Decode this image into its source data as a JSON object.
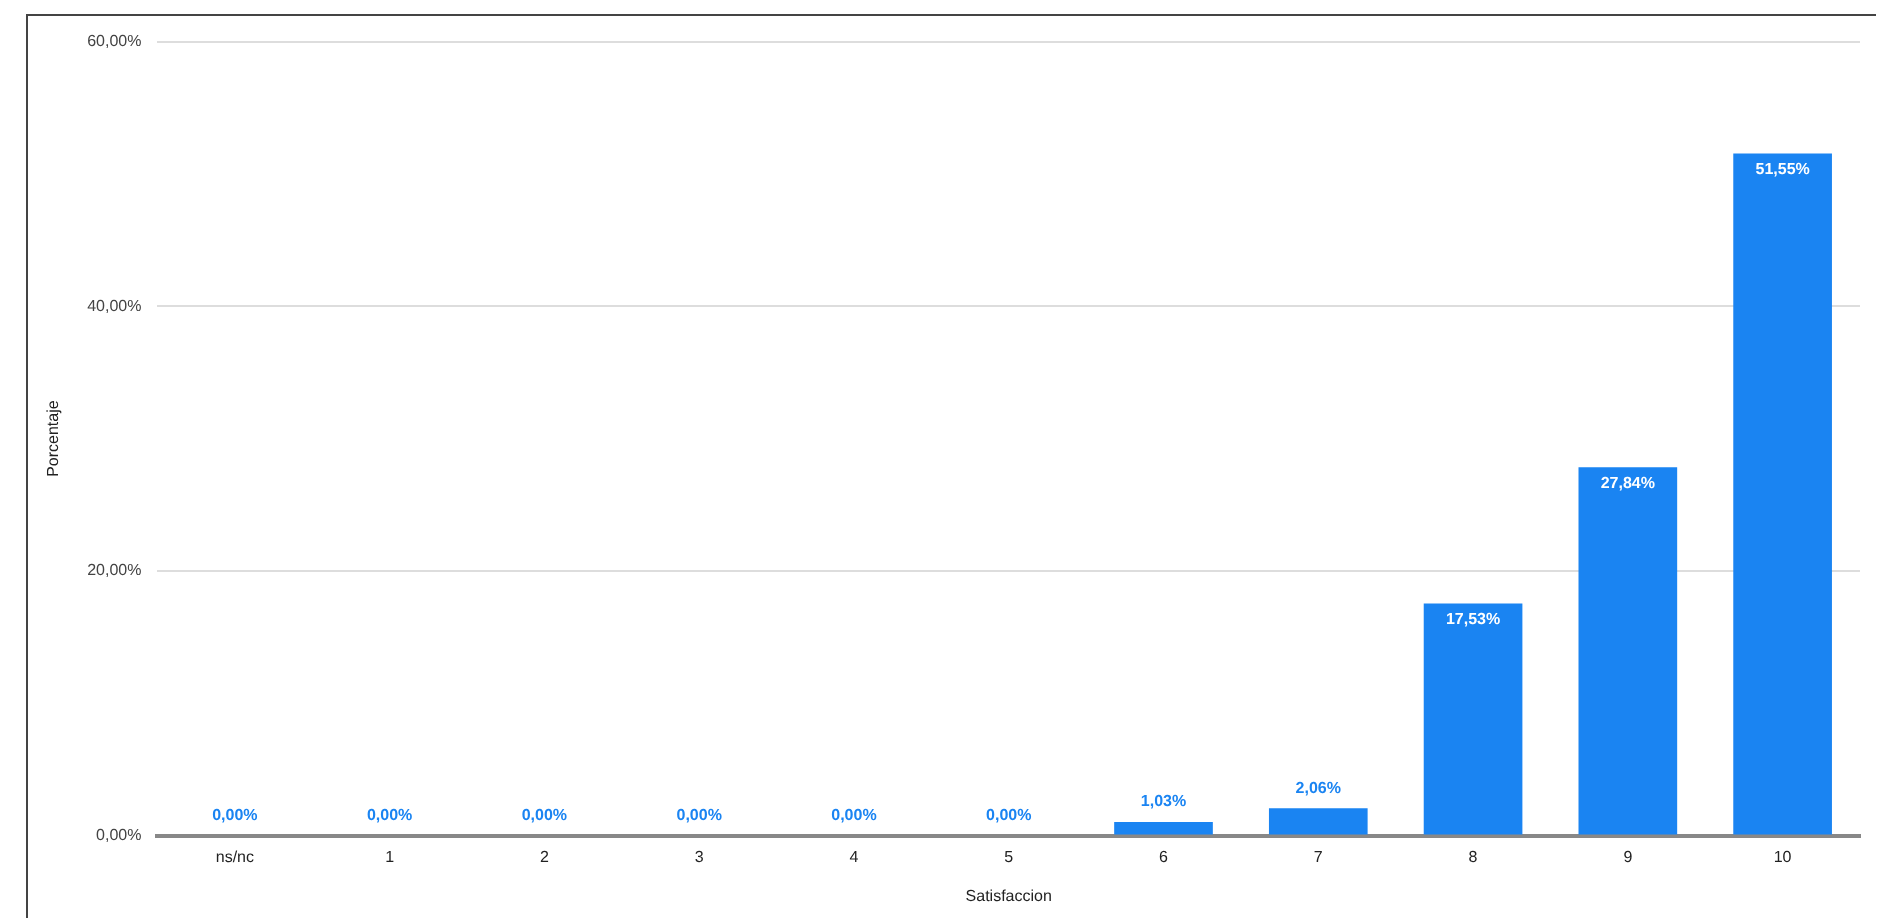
{
  "chart_data": {
    "type": "bar",
    "xlabel": "Satisfaccion",
    "ylabel": "Porcentaje",
    "categories": [
      "ns/nc",
      "1",
      "2",
      "3",
      "4",
      "5",
      "6",
      "7",
      "8",
      "9",
      "10"
    ],
    "values": [
      0,
      0,
      0,
      0,
      0,
      0,
      1.03,
      2.06,
      17.53,
      27.84,
      51.55
    ],
    "value_labels": [
      "0,00%",
      "0,00%",
      "0,00%",
      "0,00%",
      "0,00%",
      "0,00%",
      "1,03%",
      "2,06%",
      "17,53%",
      "27,84%",
      "51,55%"
    ],
    "color": "#1a84f2",
    "ylim": [
      0,
      60
    ],
    "yticks": [
      {
        "value": 0,
        "label": "0,00%"
      },
      {
        "value": 20,
        "label": "20,00%"
      },
      {
        "value": 40,
        "label": "40,00%"
      },
      {
        "value": 60,
        "label": "60,00%"
      }
    ],
    "grid": "y",
    "legend": false
  }
}
